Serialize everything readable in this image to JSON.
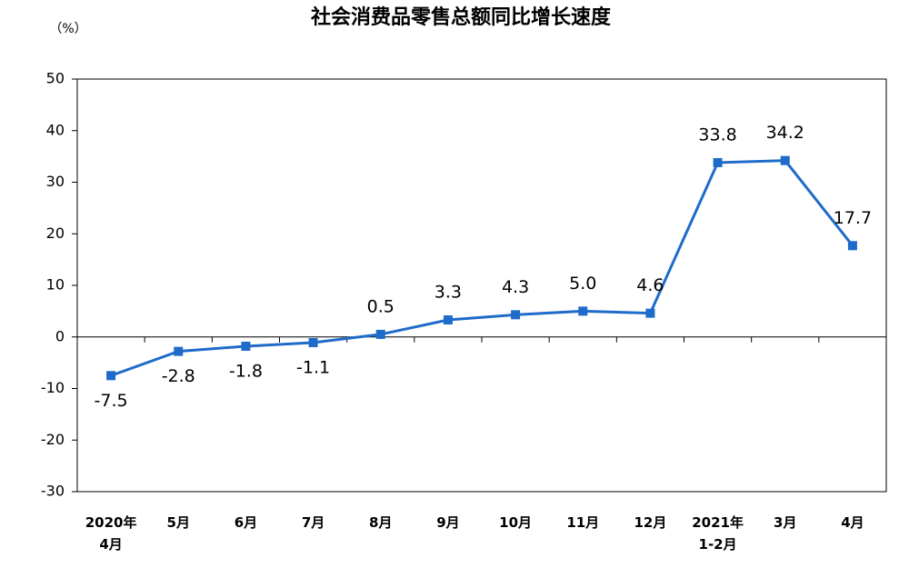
{
  "chart_data": {
    "type": "line",
    "title": "社会消费品零售总额同比增长速度",
    "y_label": "（%）",
    "categories": [
      [
        "2020年",
        "4月"
      ],
      [
        "5月"
      ],
      [
        "6月"
      ],
      [
        "7月"
      ],
      [
        "8月"
      ],
      [
        "9月"
      ],
      [
        "10月"
      ],
      [
        "11月"
      ],
      [
        "12月"
      ],
      [
        "2021年",
        "1-2月"
      ],
      [
        "3月"
      ],
      [
        "4月"
      ]
    ],
    "series": [
      {
        "name": "社会消费品零售总额同比增长速度",
        "color": "#1f6bc9",
        "values": [
          -7.5,
          -2.8,
          -1.8,
          -1.1,
          0.5,
          3.3,
          4.3,
          5.0,
          4.6,
          33.8,
          34.2,
          17.7
        ],
        "value_labels": [
          "-7.5",
          "-2.8",
          "-1.8",
          "-1.1",
          "0.5",
          "3.3",
          "4.3",
          "5.0",
          "4.6",
          "33.8",
          "34.2",
          "17.7"
        ]
      }
    ],
    "ylim": [
      -30,
      50
    ],
    "yticks": [
      -30,
      -20,
      -10,
      0,
      10,
      20,
      30,
      40,
      50
    ],
    "grid": false
  }
}
